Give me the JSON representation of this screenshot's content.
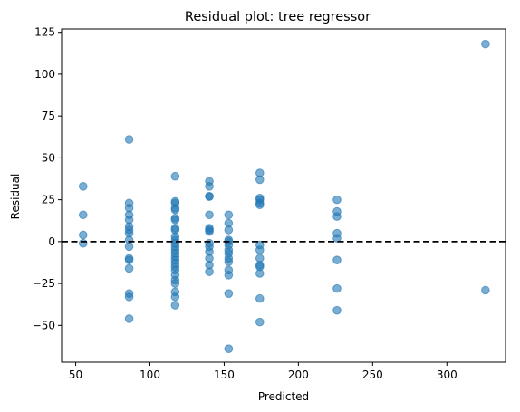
{
  "chart_data": {
    "type": "scatter",
    "title": "Residual plot: tree regressor",
    "xlabel": "Predicted",
    "ylabel": "Residual",
    "xlim": [
      40.5,
      339.5
    ],
    "ylim": [
      -72,
      127
    ],
    "xticks": [
      50,
      100,
      150,
      200,
      250,
      300
    ],
    "yticks": [
      -50,
      -25,
      0,
      25,
      50,
      75,
      100,
      125
    ],
    "grid": false,
    "reference_line": {
      "y": 0,
      "style": "dashed",
      "color": "#000000"
    },
    "marker_color": "#1f77b4",
    "points": [
      [
        55,
        33
      ],
      [
        55,
        16
      ],
      [
        55,
        4
      ],
      [
        55,
        -1
      ],
      [
        86,
        61
      ],
      [
        86,
        23
      ],
      [
        86,
        20
      ],
      [
        86,
        16
      ],
      [
        86,
        13
      ],
      [
        86,
        9
      ],
      [
        86,
        7
      ],
      [
        86,
        5
      ],
      [
        86,
        1
      ],
      [
        86,
        -3
      ],
      [
        86,
        -10
      ],
      [
        86,
        -11
      ],
      [
        86,
        -16
      ],
      [
        86,
        -31
      ],
      [
        86,
        -33
      ],
      [
        86,
        -46
      ],
      [
        117,
        39
      ],
      [
        117,
        24
      ],
      [
        117,
        23
      ],
      [
        117,
        20
      ],
      [
        117,
        19
      ],
      [
        117,
        14
      ],
      [
        117,
        13
      ],
      [
        117,
        8
      ],
      [
        117,
        7
      ],
      [
        117,
        3
      ],
      [
        117,
        1
      ],
      [
        117,
        -1
      ],
      [
        117,
        -3
      ],
      [
        117,
        -5
      ],
      [
        117,
        -7
      ],
      [
        117,
        -9
      ],
      [
        117,
        -11
      ],
      [
        117,
        -13
      ],
      [
        117,
        -15
      ],
      [
        117,
        -17
      ],
      [
        117,
        -20
      ],
      [
        117,
        -23
      ],
      [
        117,
        -25
      ],
      [
        117,
        -30
      ],
      [
        117,
        -33
      ],
      [
        117,
        -38
      ],
      [
        140,
        36
      ],
      [
        140,
        33
      ],
      [
        140,
        27
      ],
      [
        140,
        27
      ],
      [
        140,
        16
      ],
      [
        140,
        8
      ],
      [
        140,
        7
      ],
      [
        140,
        6
      ],
      [
        140,
        -1
      ],
      [
        140,
        -3
      ],
      [
        140,
        -6
      ],
      [
        140,
        -10
      ],
      [
        140,
        -14
      ],
      [
        140,
        -18
      ],
      [
        153,
        16
      ],
      [
        153,
        11
      ],
      [
        153,
        7
      ],
      [
        153,
        1
      ],
      [
        153,
        0
      ],
      [
        153,
        -2
      ],
      [
        153,
        -5
      ],
      [
        153,
        -7
      ],
      [
        153,
        -10
      ],
      [
        153,
        -12
      ],
      [
        153,
        -17
      ],
      [
        153,
        -20
      ],
      [
        153,
        -31
      ],
      [
        153,
        -64
      ],
      [
        174,
        41
      ],
      [
        174,
        37
      ],
      [
        174,
        26
      ],
      [
        174,
        25
      ],
      [
        174,
        23
      ],
      [
        174,
        22
      ],
      [
        174,
        -2
      ],
      [
        174,
        -5
      ],
      [
        174,
        -10
      ],
      [
        174,
        -14
      ],
      [
        174,
        -15
      ],
      [
        174,
        -19
      ],
      [
        174,
        -34
      ],
      [
        174,
        -48
      ],
      [
        226,
        25
      ],
      [
        226,
        18
      ],
      [
        226,
        15
      ],
      [
        226,
        5
      ],
      [
        226,
        2
      ],
      [
        226,
        -11
      ],
      [
        226,
        -28
      ],
      [
        226,
        -41
      ],
      [
        326,
        118
      ],
      [
        326,
        -29
      ]
    ]
  }
}
